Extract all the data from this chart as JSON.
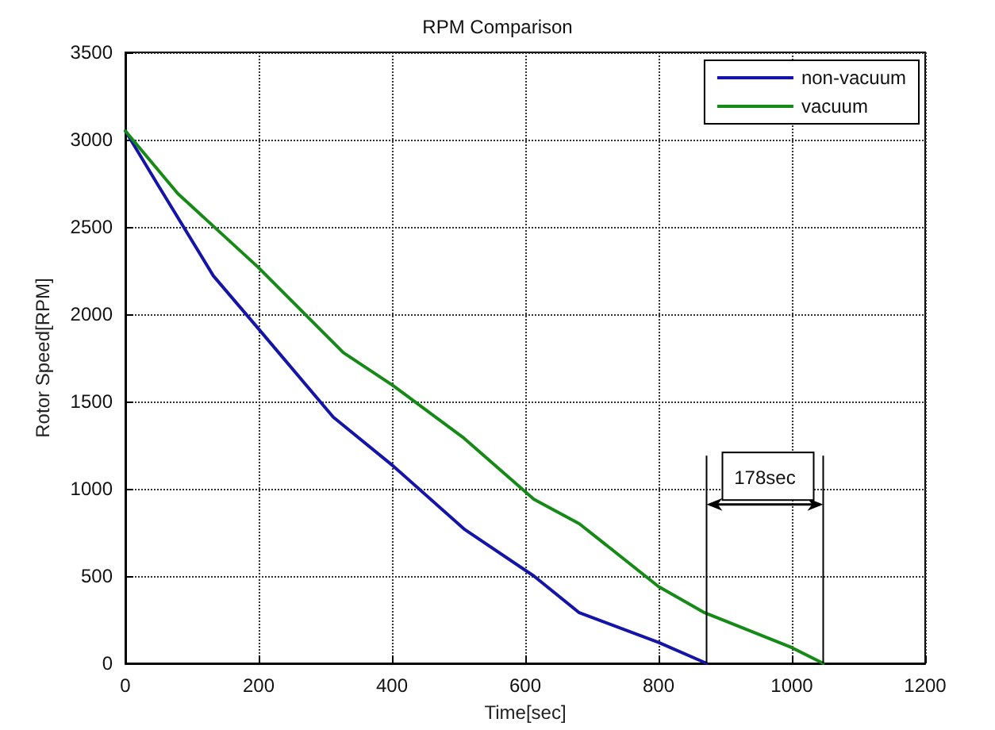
{
  "chart_data": {
    "type": "line",
    "title": "RPM Comparison",
    "xlabel": "Time[sec]",
    "ylabel": "Rotor Speed[RPM]",
    "xlim": [
      0,
      1200
    ],
    "xticks": [
      0,
      200,
      400,
      600,
      800,
      1000,
      1200
    ],
    "ylim": [
      0,
      3500
    ],
    "yticks": [
      0,
      500,
      1000,
      1500,
      2000,
      2500,
      3000,
      3500
    ],
    "grid": true,
    "legend": "top right",
    "marker": "none",
    "line_style": "solid",
    "series": [
      {
        "name": "non-vacuum",
        "color": "#1414a8",
        "x": [
          0,
          49,
          132,
          199,
          312,
          402,
          508,
          613,
          681,
          800,
          872
        ],
        "values": [
          3050,
          2740,
          2220,
          1920,
          1410,
          1130,
          770,
          500,
          290,
          120,
          0
        ]
      },
      {
        "name": "vacuum",
        "color": "#168a16",
        "x": [
          0,
          79,
          199,
          327,
          402,
          508,
          613,
          681,
          800,
          869,
          1000,
          1047
        ],
        "values": [
          3050,
          2690,
          2270,
          1780,
          1590,
          1290,
          940,
          800,
          440,
          290,
          90,
          0
        ]
      }
    ],
    "annotations": [
      "178sec"
    ]
  }
}
